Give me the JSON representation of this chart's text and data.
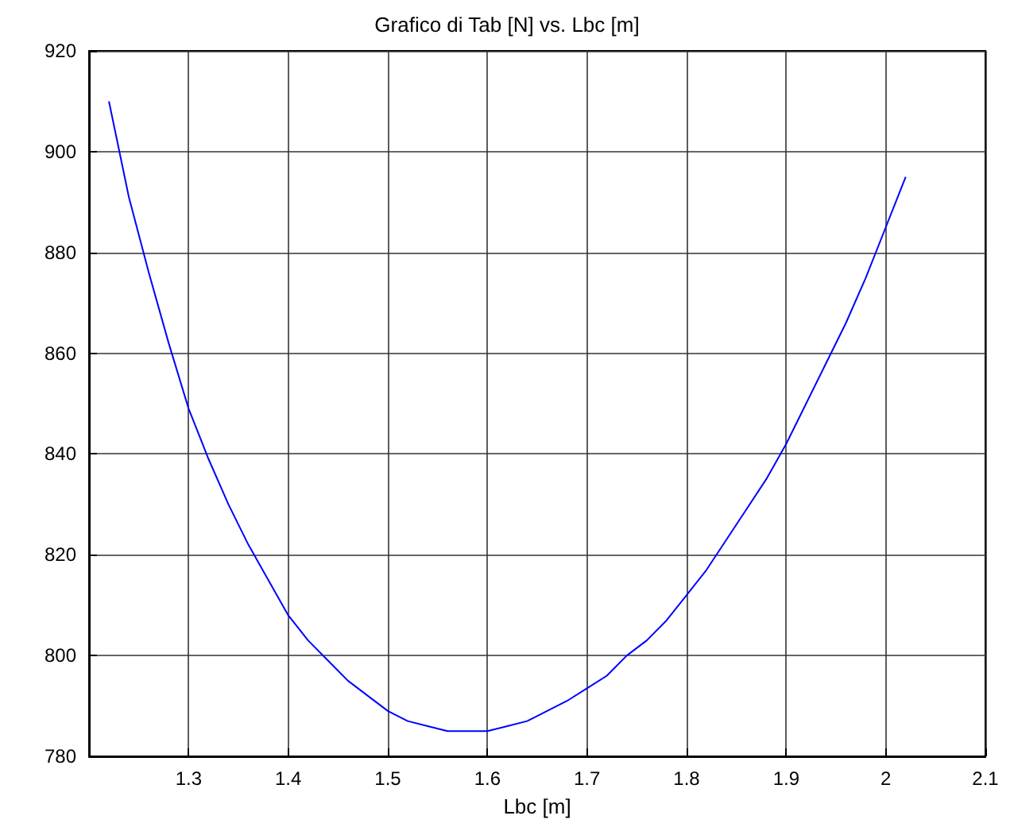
{
  "chart_data": {
    "type": "line",
    "title": "Grafico di Tab [N] vs. Lbc [m]",
    "xlabel": "Lbc [m]",
    "x": [
      1.22,
      1.24,
      1.26,
      1.28,
      1.3,
      1.32,
      1.34,
      1.36,
      1.38,
      1.4,
      1.42,
      1.44,
      1.46,
      1.48,
      1.5,
      1.52,
      1.54,
      1.56,
      1.58,
      1.6,
      1.62,
      1.64,
      1.66,
      1.68,
      1.7,
      1.72,
      1.74,
      1.76,
      1.78,
      1.8,
      1.82,
      1.84,
      1.86,
      1.88,
      1.9,
      1.92,
      1.94,
      1.96,
      1.98,
      2.0,
      2.02
    ],
    "series": [
      {
        "color": "#0000ff",
        "values": [
          910,
          891,
          876,
          862,
          849,
          839,
          830,
          822,
          815,
          808,
          803,
          799,
          795,
          792,
          789,
          787,
          786,
          785,
          785,
          785,
          786,
          787,
          789,
          791,
          793.5,
          796,
          800,
          803,
          807,
          812,
          817,
          823,
          829,
          835,
          842,
          850,
          858,
          866,
          875,
          885,
          895
        ]
      }
    ],
    "xlim": [
      1.2,
      2.1
    ],
    "xticks": [
      1.3,
      1.4,
      1.5,
      1.6,
      1.7,
      1.8,
      1.9,
      2,
      2.1
    ],
    "ylim": [
      780,
      920
    ],
    "yticks": [
      780,
      800,
      820,
      840,
      860,
      880,
      900,
      920
    ],
    "grid": true,
    "marker": "none",
    "line_style": "solid"
  }
}
